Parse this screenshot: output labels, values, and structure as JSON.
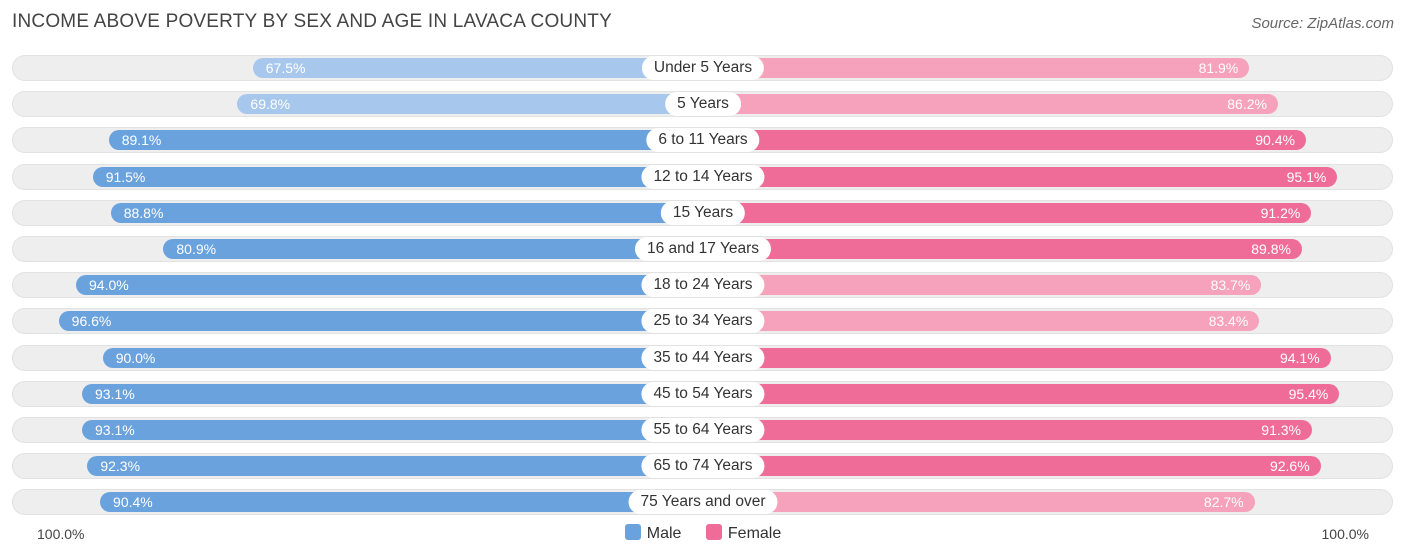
{
  "title": "INCOME ABOVE POVERTY BY SEX AND AGE IN LAVACA COUNTY",
  "source": "Source: ZipAtlas.com",
  "axis": {
    "left_label": "100.0%",
    "right_label": "100.0%"
  },
  "legend": {
    "male_label": "Male",
    "female_label": "Female"
  },
  "colors": {
    "male_strong": "#6aa2de",
    "male_light": "#a7c8ec",
    "female_strong": "#f06c98",
    "female_light": "#f6a2bd"
  },
  "chart_data": {
    "type": "bar",
    "orientation": "horizontal-diverging",
    "title": "INCOME ABOVE POVERTY BY SEX AND AGE IN LAVACA COUNTY",
    "xlim": [
      0,
      100
    ],
    "categories": [
      "Under 5 Years",
      "5 Years",
      "6 to 11 Years",
      "12 to 14 Years",
      "15 Years",
      "16 and 17 Years",
      "18 to 24 Years",
      "25 to 34 Years",
      "35 to 44 Years",
      "45 to 54 Years",
      "55 to 64 Years",
      "65 to 74 Years",
      "75 Years and over"
    ],
    "series": [
      {
        "name": "Male",
        "values": [
          67.5,
          69.8,
          89.1,
          91.5,
          88.8,
          80.9,
          94.0,
          96.6,
          90.0,
          93.1,
          93.1,
          92.3,
          90.4
        ],
        "labels": [
          "67.5%",
          "69.8%",
          "89.1%",
          "91.5%",
          "88.8%",
          "80.9%",
          "94.0%",
          "96.6%",
          "90.0%",
          "93.1%",
          "93.1%",
          "92.3%",
          "90.4%"
        ]
      },
      {
        "name": "Female",
        "values": [
          81.9,
          86.2,
          90.4,
          95.1,
          91.2,
          89.8,
          83.7,
          83.4,
          94.1,
          95.4,
          91.3,
          92.6,
          82.7
        ],
        "labels": [
          "81.9%",
          "86.2%",
          "90.4%",
          "95.1%",
          "91.2%",
          "89.8%",
          "83.7%",
          "83.4%",
          "94.1%",
          "95.4%",
          "91.3%",
          "92.6%",
          "82.7%"
        ]
      }
    ]
  }
}
